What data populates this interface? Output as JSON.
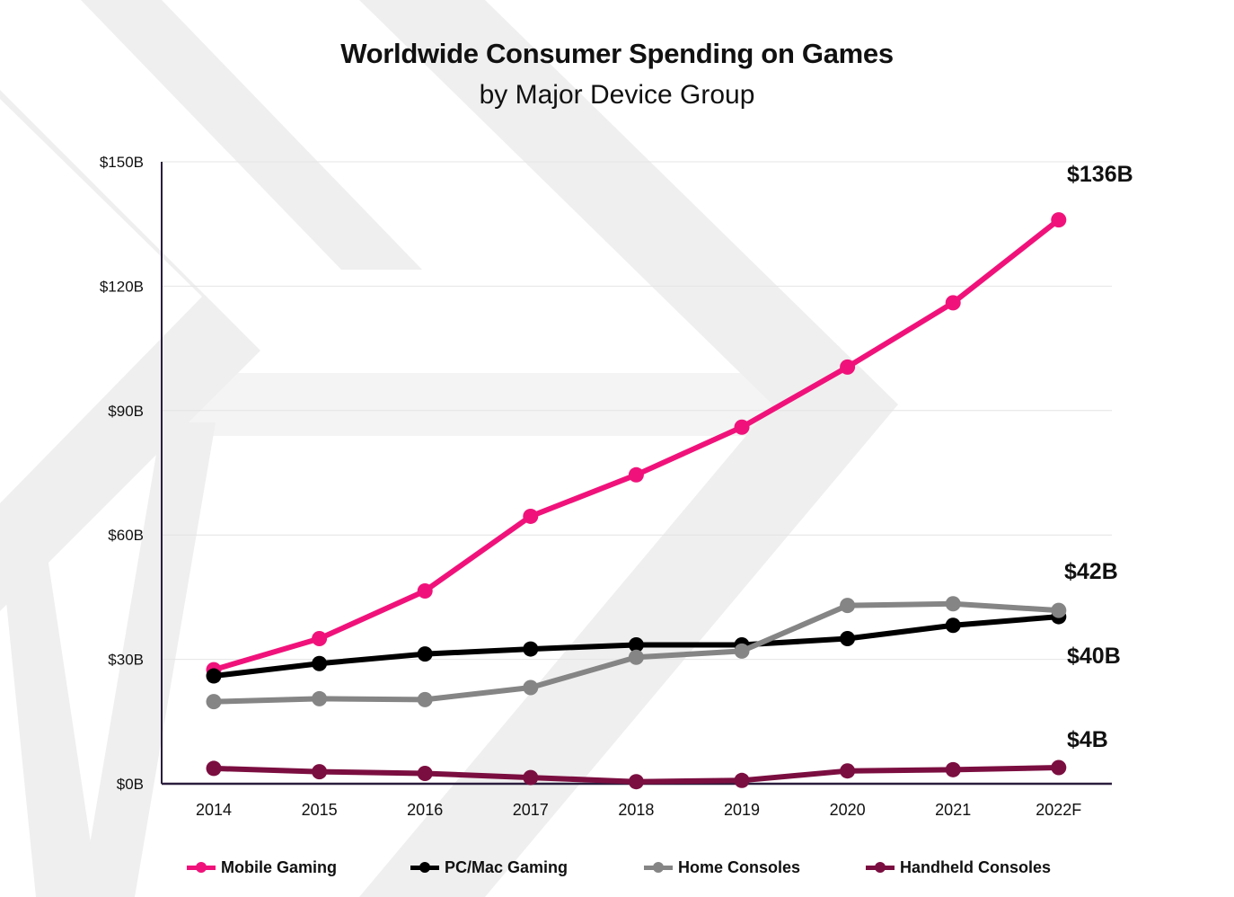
{
  "chart_data": {
    "type": "line",
    "title": "Worldwide Consumer Spending on Games",
    "subtitle": "by Major Device Group",
    "xlabel": "",
    "ylabel": "",
    "categories": [
      "2014",
      "2015",
      "2016",
      "2017",
      "2018",
      "2019",
      "2020",
      "2021",
      "2022F"
    ],
    "ylim": [
      0,
      150
    ],
    "yticks": [
      0,
      30,
      60,
      90,
      120,
      150
    ],
    "ytick_labels": [
      "$0B",
      "$30B",
      "$60B",
      "$90B",
      "$120B",
      "$150B"
    ],
    "grid": true,
    "legend_position": "bottom",
    "series": [
      {
        "name": "Mobile Gaming",
        "color": "#f0127a",
        "values": [
          27.5,
          35,
          46.5,
          64.5,
          74.5,
          86,
          100.5,
          116,
          136
        ]
      },
      {
        "name": "PC/Mac Gaming",
        "color": "#000000",
        "values": [
          26,
          29,
          31.3,
          32.5,
          33.5,
          33.5,
          35,
          38.2,
          40.3
        ]
      },
      {
        "name": "Home Consoles",
        "color": "#858585",
        "values": [
          19.8,
          20.5,
          20.3,
          23.2,
          30.5,
          32,
          43,
          43.4,
          41.8
        ]
      },
      {
        "name": "Handheld Consoles",
        "color": "#7b0e40",
        "values": [
          3.7,
          2.9,
          2.5,
          1.5,
          0.5,
          0.8,
          3.1,
          3.4,
          3.9
        ]
      }
    ],
    "annotations": [
      {
        "text": "$136B",
        "series": "Mobile Gaming"
      },
      {
        "text": "$42B",
        "series": "Home Consoles"
      },
      {
        "text": "$40B",
        "series": "PC/Mac Gaming"
      },
      {
        "text": "$4B",
        "series": "Handheld Consoles"
      }
    ]
  }
}
